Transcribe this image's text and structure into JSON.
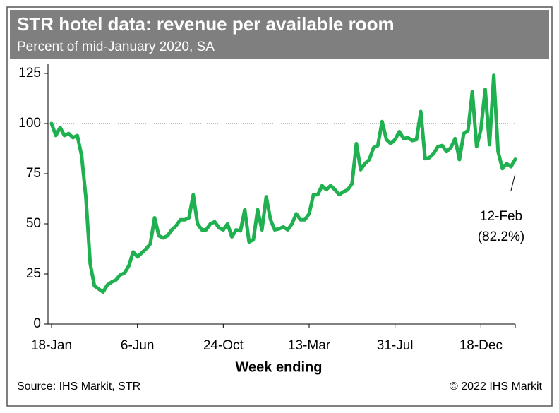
{
  "chart_data": {
    "type": "line",
    "title": "STR hotel data: revenue per available room",
    "subtitle": "Percent of mid-January 2020, SA",
    "x_label": "Week ending",
    "source": "Source: IHS Markit, STR",
    "copyright": "© 2022 IHS Markit",
    "annotation": [
      "12-Feb",
      "(82.2%)"
    ],
    "reference_line": 100,
    "categories": [
      "18-Jan",
      null,
      null,
      null,
      null,
      null,
      null,
      null,
      null,
      null,
      null,
      null,
      null,
      null,
      null,
      null,
      null,
      null,
      null,
      null,
      "6-Jun",
      null,
      null,
      null,
      null,
      null,
      null,
      null,
      null,
      null,
      null,
      null,
      null,
      null,
      null,
      null,
      null,
      null,
      null,
      null,
      "24-Oct",
      null,
      null,
      null,
      null,
      null,
      null,
      null,
      null,
      null,
      null,
      null,
      null,
      null,
      null,
      null,
      null,
      null,
      null,
      null,
      "13-Mar",
      null,
      null,
      null,
      null,
      null,
      null,
      null,
      null,
      null,
      null,
      null,
      null,
      null,
      null,
      null,
      null,
      null,
      null,
      null,
      "31-Jul",
      null,
      null,
      null,
      null,
      null,
      null,
      null,
      null,
      null,
      null,
      null,
      null,
      null,
      null,
      null,
      null,
      null,
      null,
      null,
      "18-Dec",
      null,
      null,
      null,
      null,
      null,
      null,
      null,
      null
    ],
    "series": [
      {
        "name": "RevPAR",
        "color": "#1fb04f",
        "values": [
          100,
          94,
          98,
          94,
          95,
          93,
          94,
          84,
          63,
          30,
          19,
          17.5,
          16,
          19.5,
          21,
          22,
          24.5,
          25.5,
          29,
          36,
          33.5,
          35.5,
          37.5,
          40,
          53,
          44,
          43,
          44,
          47,
          49,
          52,
          52,
          53,
          64.5,
          50,
          47,
          47,
          50,
          51,
          48,
          47,
          50,
          43.5,
          47,
          46.5,
          57,
          41,
          42,
          57,
          47,
          63.5,
          52,
          47,
          47.5,
          48.5,
          47,
          50,
          55,
          52,
          52,
          55,
          64.5,
          64.5,
          69,
          67,
          69,
          67,
          64.5,
          66,
          67,
          70,
          90,
          77,
          80,
          82,
          88,
          89,
          101,
          92,
          90,
          92,
          96,
          92.5,
          93,
          91.5,
          92,
          106,
          82.5,
          83,
          85,
          88.5,
          89,
          86,
          88,
          92.5,
          82,
          95,
          96.5,
          116,
          88.5,
          97,
          117,
          89.5,
          124,
          86,
          77.5,
          80,
          78.5,
          82.2
        ]
      }
    ],
    "ylim": [
      0,
      125
    ],
    "yticks": [
      0,
      25,
      50,
      75,
      100,
      125
    ]
  }
}
